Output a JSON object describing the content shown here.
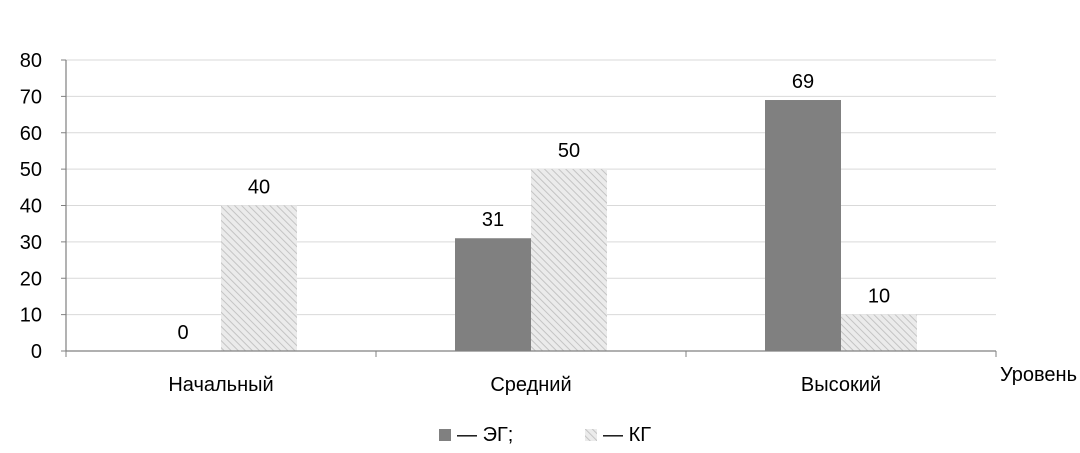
{
  "chart_data": {
    "type": "bar",
    "title": "",
    "xlabel": "Уровень",
    "ylabel": "",
    "categories": [
      "Начальный",
      "Средний",
      "Высокий"
    ],
    "series": [
      {
        "name": "ЭГ;",
        "values": [
          0,
          31,
          69
        ],
        "color": "#808080",
        "pattern": "solid"
      },
      {
        "name": "КГ",
        "values": [
          40,
          50,
          10
        ],
        "color": "#d9d9d9",
        "pattern": "hatched"
      }
    ],
    "ylim": [
      0,
      80
    ],
    "yticks": [
      0,
      10,
      20,
      30,
      40,
      50,
      60,
      70,
      80
    ],
    "grid": true,
    "legend_position": "bottom",
    "legend_dash": "—",
    "data_labels": true
  }
}
